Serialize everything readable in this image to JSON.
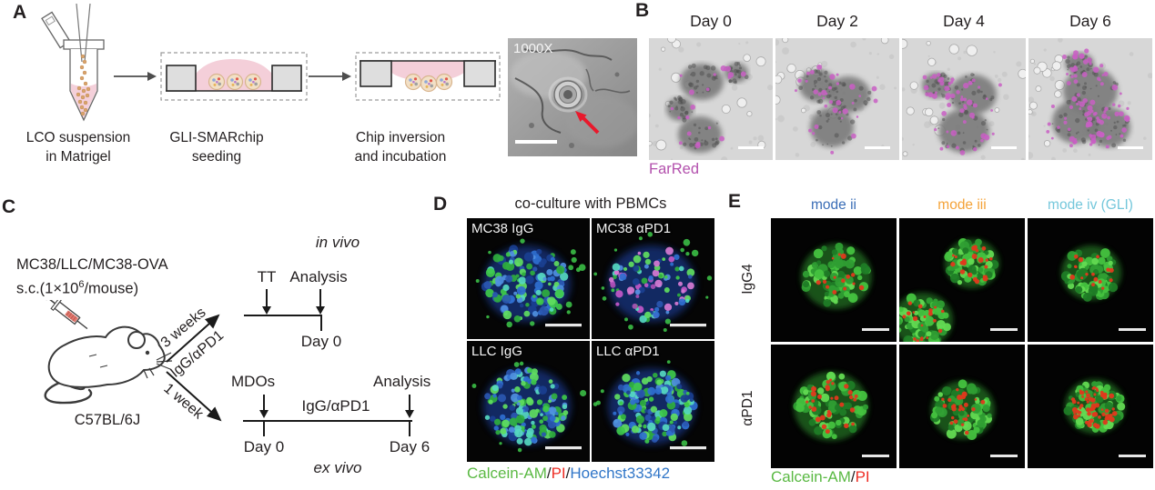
{
  "panels": {
    "a": {
      "label": "A",
      "steps": [
        {
          "line1": "LCO suspension",
          "line2": "in Matrigel"
        },
        {
          "line1": "GLI-SMARchip",
          "line2": "seeding"
        },
        {
          "line1": "Chip inversion",
          "line2": "and incubation"
        }
      ],
      "sem_magnification": "1000X"
    },
    "b": {
      "label": "B",
      "timepoints": [
        "Day 0",
        "Day 2",
        "Day 4",
        "Day 6"
      ],
      "stain": "FarRed",
      "stain_color": "#b351ad"
    },
    "c": {
      "label": "C",
      "cells_line": "MC38/LLC/MC38-OVA",
      "dose_prefix": "s.c.(1×10",
      "dose_sup": "6",
      "dose_suffix": "/mouse)",
      "strain": "C57BL/6J",
      "branch_top": {
        "duration": "3 weeks",
        "treatment": "IgG/αPD1"
      },
      "branch_bottom": {
        "duration": "1 week"
      },
      "in_vivo": {
        "context": "in vivo",
        "event1": "TT",
        "event2": "Analysis",
        "day0": "Day 0"
      },
      "ex_vivo": {
        "context": "ex vivo",
        "start_event": "MDOs",
        "end_event": "Analysis",
        "treatment": "IgG/αPD1",
        "day_start": "Day 0",
        "day_end": "Day 6"
      }
    },
    "d": {
      "label": "D",
      "title": "co-culture with PBMCs",
      "images": [
        "MC38 IgG",
        "MC38 αPD1",
        "LLC IgG",
        "LLC αPD1"
      ],
      "legend": [
        {
          "text": "Calcein-AM",
          "color": "#5ab943"
        },
        {
          "text": "/",
          "color": "#231f20"
        },
        {
          "text": "PI",
          "color": "#ee2d24"
        },
        {
          "text": "/",
          "color": "#231f20"
        },
        {
          "text": "Hoechst33342",
          "color": "#3076c8"
        }
      ]
    },
    "e": {
      "label": "E",
      "columns": [
        {
          "label": "mode ii",
          "color": "#3a6db6"
        },
        {
          "label": "mode iii",
          "color": "#f4a339"
        },
        {
          "label": "mode iv (GLI)",
          "color": "#74c7db"
        }
      ],
      "rows": [
        "IgG4",
        "αPD1"
      ],
      "legend": [
        {
          "text": "Calcein-AM",
          "color": "#5ab943"
        },
        {
          "text": "/",
          "color": "#231f20"
        },
        {
          "text": "PI",
          "color": "#ee2d24"
        }
      ]
    }
  }
}
